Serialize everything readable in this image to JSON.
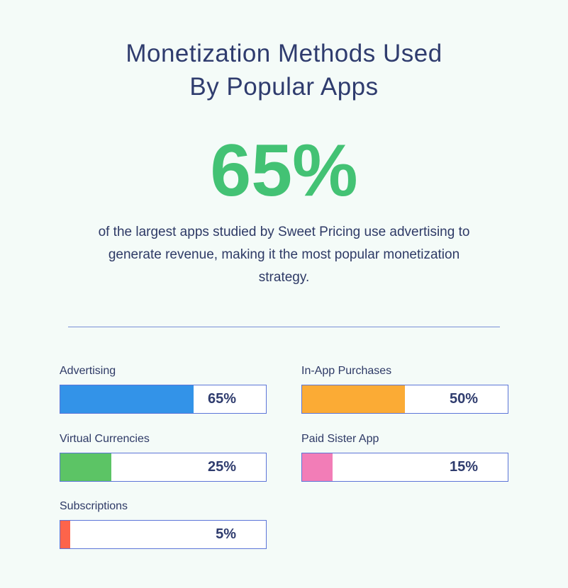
{
  "title_line1": "Monetization Methods Used",
  "title_line2": "By Popular Apps",
  "headline_stat": "65%",
  "description": "of the largest apps studied by Sweet Pricing use advertising to generate revenue, making it the most popular monetization strategy.",
  "chart_data": {
    "type": "bar",
    "orientation": "horizontal",
    "unit": "%",
    "ylim": [
      0,
      100
    ],
    "grid": false,
    "categories": [
      "Advertising",
      "In-App Purchases",
      "Virtual Currencies",
      "Paid Sister App",
      "Subscriptions"
    ],
    "values": [
      65,
      50,
      25,
      15,
      5
    ],
    "value_labels": [
      "65%",
      "50%",
      "25%",
      "15%",
      "5%"
    ],
    "colors": [
      "#3393e8",
      "#fbab35",
      "#5cc465",
      "#f27db7",
      "#fd644b"
    ]
  }
}
